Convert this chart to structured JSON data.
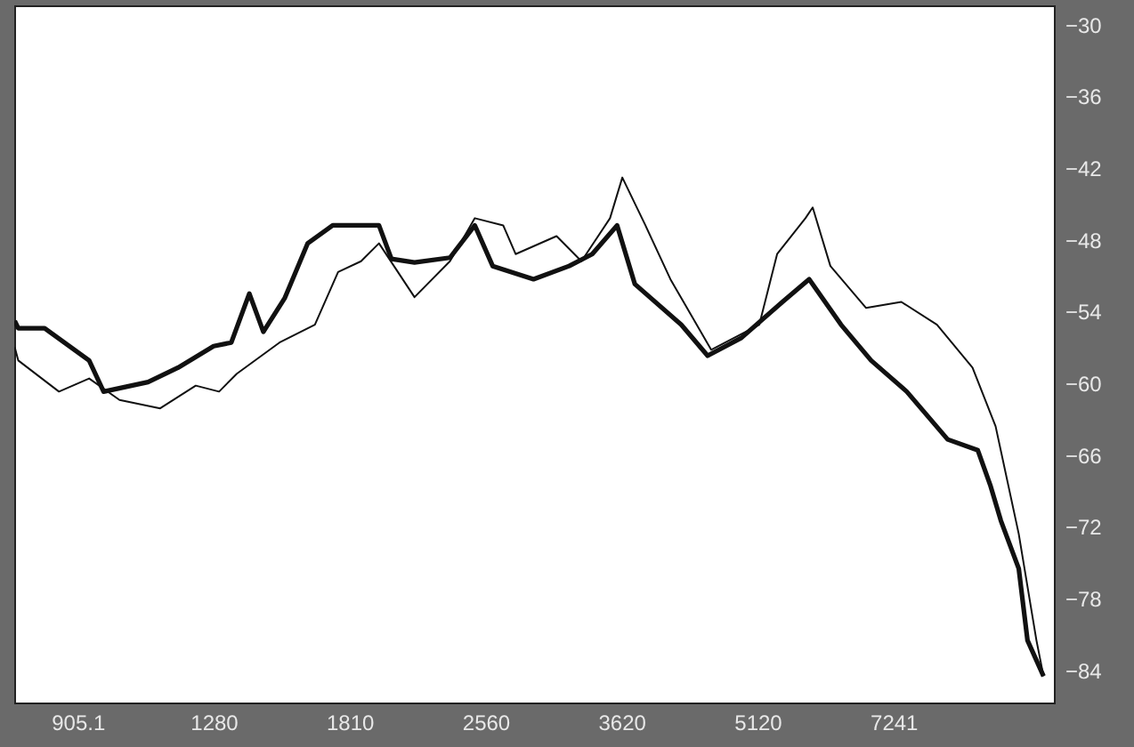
{
  "chart_data": {
    "type": "line",
    "log": "x",
    "grid": false,
    "marker": "none",
    "line_style": "solid",
    "xlim": [
      770,
      10900
    ],
    "xticks": [
      905.1,
      1280,
      1810,
      2560,
      3620,
      5120,
      7241
    ],
    "ylim": [
      -86.7,
      -28.4
    ],
    "yticks": [
      -30,
      -36,
      -42,
      -48,
      -54,
      -60,
      -66,
      -72,
      -78,
      -84
    ],
    "series": [
      {
        "color": "#111111",
        "x": [
          771,
          778,
          832,
          932,
          967,
          1083,
          1169,
          1280,
          1339,
          1402,
          1453,
          1534,
          1627,
          1734,
          1951,
          2014,
          2136,
          2338,
          2491,
          2607,
          2893,
          3168,
          3360,
          3580,
          3745,
          4215,
          4509,
          4915,
          5457,
          5841,
          6335,
          6841,
          7491,
          8314,
          8978,
          9267,
          9523,
          9966,
          10191,
          10616
        ],
        "values": [
          -54.8,
          -55.4,
          -55.4,
          -58.1,
          -60.7,
          -59.9,
          -58.7,
          -56.9,
          -56.6,
          -52.5,
          -55.7,
          -52.9,
          -48.3,
          -46.8,
          -46.8,
          -49.6,
          -49.9,
          -49.5,
          -46.8,
          -50.2,
          -51.3,
          -50.2,
          -49.2,
          -46.8,
          -51.7,
          -55.1,
          -57.7,
          -56.2,
          -53.2,
          -51.3,
          -55.1,
          -58.1,
          -60.7,
          -64.7,
          -65.6,
          -68.5,
          -71.5,
          -75.5,
          -81.5,
          -84.5
        ]
      },
      {
        "color": "#111111",
        "x": [
          771,
          778,
          863,
          932,
          1007,
          1117,
          1223,
          1298,
          1358,
          1514,
          1657,
          1758,
          1864,
          1951,
          2136,
          2338,
          2491,
          2678,
          2764,
          3068,
          3269,
          3516,
          3628,
          3848,
          4101,
          4550,
          5144,
          5383,
          5786,
          5894,
          6166,
          6751,
          7388,
          8091,
          8858,
          9395,
          9966,
          10426,
          10616
        ],
        "values": [
          -57.0,
          -58.1,
          -60.7,
          -59.6,
          -61.4,
          -62.1,
          -60.2,
          -60.7,
          -59.2,
          -56.6,
          -55.1,
          -50.7,
          -49.8,
          -48.3,
          -52.8,
          -49.8,
          -46.2,
          -46.8,
          -49.2,
          -47.7,
          -49.8,
          -46.2,
          -42.8,
          -46.8,
          -51.3,
          -57.2,
          -55.1,
          -49.2,
          -46.2,
          -45.3,
          -50.2,
          -53.7,
          -53.2,
          -55.1,
          -58.7,
          -63.6,
          -72.6,
          -81.5,
          -84.5
        ]
      }
    ]
  }
}
